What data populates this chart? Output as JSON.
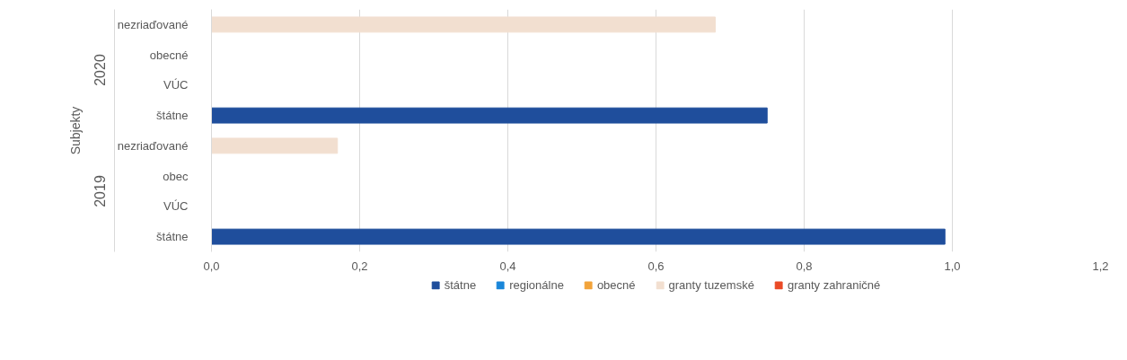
{
  "chart_data": {
    "type": "bar",
    "orientation": "horizontal",
    "stacked": true,
    "ylabel": "Subjekty",
    "categories": [
      "nezriaďované",
      "obecné",
      "VÚC",
      "štátne",
      "nezriaďované",
      "obec",
      "VÚC",
      "štátne"
    ],
    "annotations": [
      "2020",
      "2019"
    ],
    "series": [
      {
        "name": "štátne",
        "color": "#1f4e9c",
        "values": [
          null,
          null,
          null,
          0.75,
          null,
          null,
          null,
          0.99
        ]
      },
      {
        "name": "regionálne",
        "color": "#1a86d9",
        "values": [
          null,
          null,
          null,
          null,
          null,
          null,
          null,
          null
        ]
      },
      {
        "name": "obecné",
        "color": "#f2a33a",
        "values": [
          null,
          null,
          null,
          null,
          null,
          null,
          null,
          null
        ]
      },
      {
        "name": "granty tuzemské",
        "color": "#f2dfd0",
        "values": [
          0.68,
          null,
          null,
          null,
          0.17,
          null,
          null,
          null
        ]
      },
      {
        "name": "granty zahraničné",
        "color": "#ea4a26",
        "values": [
          null,
          null,
          null,
          null,
          null,
          null,
          null,
          null
        ]
      }
    ],
    "xlim": [
      0,
      1.2
    ],
    "xticks": [
      {
        "value": 0,
        "label": "0,0"
      },
      {
        "value": 0.2,
        "label": "0,2"
      },
      {
        "value": 0.4,
        "label": "0,4"
      },
      {
        "value": 0.6,
        "label": "0,6"
      },
      {
        "value": 0.8,
        "label": "0,8"
      },
      {
        "value": 1.0,
        "label": "1,0"
      },
      {
        "value": 1.2,
        "label": "1,2"
      }
    ],
    "grid": "x",
    "legend": "bottom"
  }
}
